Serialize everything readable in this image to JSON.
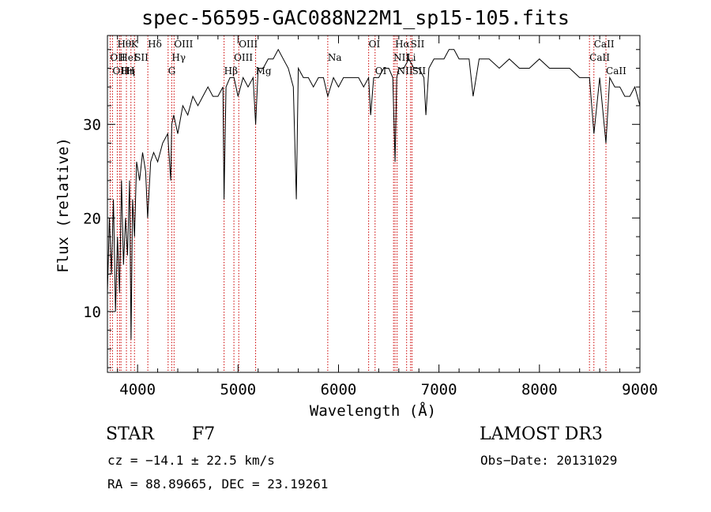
{
  "chart_data": {
    "type": "line",
    "title": "spec-56595-GAC088N22M1_sp15-105.fits",
    "xlabel": "Wavelength (Å)",
    "ylabel": "Flux (relative)",
    "xlim": [
      3700,
      9000
    ],
    "ylim": [
      3.5,
      39.5
    ],
    "xticks": [
      4000,
      5000,
      6000,
      7000,
      8000,
      9000
    ],
    "xtick_labels": [
      "4000",
      "5000",
      "6000",
      "7000",
      "8000",
      "9000"
    ],
    "yticks": [
      10,
      20,
      30
    ],
    "ytick_labels": [
      "10",
      "20",
      "30"
    ],
    "series": [
      {
        "name": "spectrum",
        "x": [
          3700,
          3720,
          3740,
          3760,
          3780,
          3800,
          3820,
          3840,
          3860,
          3880,
          3900,
          3920,
          3935,
          3950,
          3970,
          3990,
          4020,
          4050,
          4080,
          4100,
          4130,
          4160,
          4200,
          4250,
          4300,
          4330,
          4340,
          4360,
          4400,
          4450,
          4500,
          4550,
          4600,
          4650,
          4700,
          4750,
          4800,
          4850,
          4861,
          4880,
          4920,
          4960,
          5000,
          5050,
          5100,
          5150,
          5175,
          5200,
          5250,
          5300,
          5350,
          5400,
          5450,
          5500,
          5550,
          5580,
          5600,
          5650,
          5700,
          5750,
          5800,
          5850,
          5893,
          5950,
          6000,
          6050,
          6100,
          6150,
          6200,
          6250,
          6300,
          6320,
          6350,
          6400,
          6450,
          6500,
          6540,
          6563,
          6580,
          6600,
          6650,
          6700,
          6750,
          6800,
          6850,
          6870,
          6900,
          6950,
          7000,
          7050,
          7100,
          7150,
          7200,
          7250,
          7300,
          7340,
          7400,
          7450,
          7500,
          7600,
          7700,
          7800,
          7900,
          8000,
          8100,
          8200,
          8300,
          8400,
          8498,
          8542,
          8600,
          8662,
          8700,
          8750,
          8800,
          8850,
          8900,
          8950,
          9000
        ],
        "y": [
          12,
          20,
          14,
          22,
          10,
          18,
          12,
          24,
          15,
          20,
          16,
          24,
          7,
          22,
          18,
          26,
          24,
          27,
          25,
          20,
          26,
          27,
          26,
          28,
          29,
          24,
          30,
          31,
          29,
          32,
          31,
          33,
          32,
          33,
          34,
          33,
          33,
          34,
          22,
          34,
          35,
          35,
          33,
          35,
          34,
          35,
          30,
          36,
          36,
          37,
          37,
          38,
          37,
          36,
          34,
          22,
          36,
          35,
          35,
          34,
          35,
          35,
          33,
          35,
          34,
          35,
          35,
          35,
          35,
          34,
          35,
          31,
          35,
          35,
          36,
          36,
          35,
          26,
          35,
          36,
          36,
          37,
          36,
          36,
          35,
          31,
          36,
          37,
          37,
          37,
          38,
          38,
          37,
          37,
          37,
          33,
          37,
          37,
          37,
          36,
          37,
          36,
          36,
          37,
          36,
          36,
          36,
          35,
          35,
          29,
          35,
          28,
          35,
          34,
          34,
          33,
          33,
          34,
          32
        ]
      }
    ],
    "line_markers": [
      {
        "wl": 3727,
        "label": "OII",
        "row": 1
      },
      {
        "wl": 3750,
        "label": "OII",
        "row": 2
      },
      {
        "wl": 3798,
        "label": "Hθ",
        "row": 0
      },
      {
        "wl": 3820,
        "label": "HeI",
        "row": 1
      },
      {
        "wl": 3835,
        "label": "Hη",
        "row": 2
      },
      {
        "wl": 3889,
        "label": "H",
        "row": 2
      },
      {
        "wl": 3934,
        "label": "K",
        "row": 0
      },
      {
        "wl": 3969,
        "label": "SII",
        "row": 1
      },
      {
        "wl": 4102,
        "label": "Hδ",
        "row": 0
      },
      {
        "wl": 4304,
        "label": "G",
        "row": 2
      },
      {
        "wl": 4340,
        "label": "Hγ",
        "row": 1
      },
      {
        "wl": 4363,
        "label": "OIII",
        "row": 0
      },
      {
        "wl": 4861,
        "label": "Hβ",
        "row": 2
      },
      {
        "wl": 4959,
        "label": "OIII",
        "row": 1
      },
      {
        "wl": 5007,
        "label": "OIII",
        "row": 0
      },
      {
        "wl": 5175,
        "label": "Mg",
        "row": 2
      },
      {
        "wl": 5893,
        "label": "Na",
        "row": 1
      },
      {
        "wl": 6300,
        "label": "OI",
        "row": 0
      },
      {
        "wl": 6364,
        "label": "OI",
        "row": 2
      },
      {
        "wl": 6548,
        "label": "NII",
        "row": 1
      },
      {
        "wl": 6563,
        "label": "Hα",
        "row": 0
      },
      {
        "wl": 6583,
        "label": "NII",
        "row": 2
      },
      {
        "wl": 6678,
        "label": "Li",
        "row": 1
      },
      {
        "wl": 6717,
        "label": "SII",
        "row": 0
      },
      {
        "wl": 6731,
        "label": "SII",
        "row": 2
      },
      {
        "wl": 8498,
        "label": "CaII",
        "row": 1
      },
      {
        "wl": 8542,
        "label": "CaII",
        "row": 0
      },
      {
        "wl": 8662,
        "label": "CaII",
        "row": 2
      }
    ]
  },
  "info": {
    "object_class": "STAR",
    "subclass": "F7",
    "survey": "LAMOST DR3",
    "redshift": "cz = −14.1 ± 22.5 km/s",
    "obs_date": "Obs−Date: 20131029",
    "coords": "RA =  88.89665, DEC =  23.19261"
  },
  "colors": {
    "spectrum": "#000000",
    "marker": "#cc0000",
    "axis": "#000000"
  }
}
